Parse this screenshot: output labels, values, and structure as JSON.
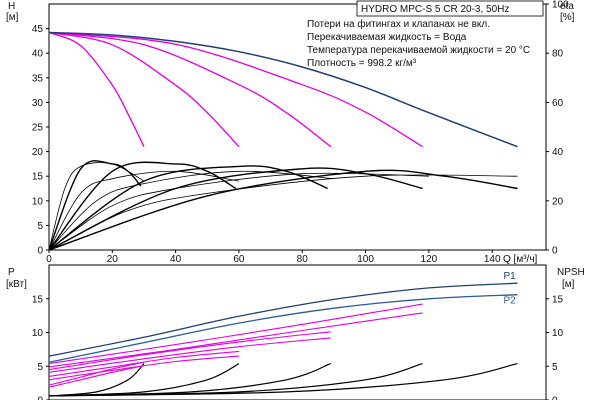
{
  "chart_data": [
    {
      "type": "line",
      "title": "HYDRO MPC-S 5 CR 20-3, 50Hz",
      "xlabel": "Q [м³/ч]",
      "ylabel_left": [
        "H",
        "[м]"
      ],
      "ylabel_right": [
        "eta",
        "[%]"
      ],
      "notes": [
        "Потери на фитингах и клапанах не вкл.",
        "Перекачиваемая жидкость = Вода",
        "Температура перекачиваемой жидкости = 20 °C",
        "Плотность = 998.2 кг/м³"
      ],
      "xlim": [
        0,
        157
      ],
      "ylim_left": [
        0,
        50
      ],
      "ylim_right": [
        0,
        100
      ],
      "x_ticks": [
        0,
        20,
        40,
        60,
        80,
        100,
        120,
        140
      ],
      "y_ticks_left": [
        0,
        5,
        10,
        15,
        20,
        25,
        30,
        35,
        40,
        45
      ],
      "y_ticks_right": [
        0,
        20,
        40,
        60,
        80,
        100
      ],
      "colors": {
        "max": "#1f3f73",
        "reduced": "#e600e6",
        "eta": "#000000"
      },
      "head_max": {
        "x": [
          0,
          20,
          40,
          60,
          80,
          100,
          120,
          148
        ],
        "y": [
          44.2,
          43.7,
          42.4,
          40.3,
          37.2,
          33.0,
          27.9,
          21.0
        ]
      },
      "head_reduced": [
        {
          "x": [
            0,
            10,
            20,
            25,
            30
          ],
          "y": [
            44.2,
            41.5,
            33.5,
            27.6,
            21.0
          ]
        },
        {
          "x": [
            0,
            20,
            40,
            50,
            60
          ],
          "y": [
            44.2,
            41.7,
            33.5,
            27.9,
            21.0
          ]
        },
        {
          "x": [
            0,
            30,
            60,
            75,
            89
          ],
          "y": [
            44.2,
            41.7,
            33.6,
            27.9,
            21.0
          ]
        },
        {
          "x": [
            0,
            40,
            80,
            100,
            118
          ],
          "y": [
            44.2,
            41.8,
            33.6,
            28.0,
            21.0
          ]
        }
      ],
      "efficiency": [
        {
          "x": [
            0,
            10,
            20,
            25,
            29
          ],
          "eta": [
            0,
            33,
            35,
            32,
            26
          ]
        },
        {
          "x": [
            0,
            5,
            10,
            20,
            30
          ],
          "eta": [
            0,
            25,
            34,
            35,
            28
          ]
        },
        {
          "x": [
            0,
            20,
            40,
            50,
            59
          ],
          "eta": [
            0,
            32,
            35,
            32,
            25
          ]
        },
        {
          "x": [
            0,
            10,
            20,
            40,
            60
          ],
          "eta": [
            0,
            23,
            29,
            32,
            28
          ]
        },
        {
          "x": [
            0,
            30,
            60,
            75,
            88
          ],
          "eta": [
            0,
            28,
            34,
            32,
            25
          ]
        },
        {
          "x": [
            0,
            15,
            30,
            60,
            90
          ],
          "eta": [
            0,
            20,
            27,
            32,
            29
          ]
        },
        {
          "x": [
            0,
            40,
            80,
            100,
            118
          ],
          "eta": [
            0,
            25,
            33,
            31,
            25
          ]
        },
        {
          "x": [
            0,
            20,
            40,
            80,
            120
          ],
          "eta": [
            0,
            18,
            25,
            31,
            30
          ]
        },
        {
          "x": [
            0,
            50,
            100,
            125,
            148
          ],
          "eta": [
            0,
            22,
            32,
            30,
            25
          ]
        },
        {
          "x": [
            0,
            25,
            50,
            100,
            148
          ],
          "eta": [
            0,
            16,
            23,
            30,
            30
          ]
        }
      ]
    },
    {
      "type": "line",
      "ylabel_left": [
        "P",
        "[кВт]"
      ],
      "ylabel_right": [
        "NPSH",
        "[м]"
      ],
      "xlim": [
        0,
        157
      ],
      "ylim_left": [
        0,
        20
      ],
      "ylim_right": [
        0,
        20
      ],
      "x_ticks": [
        0,
        20,
        40,
        60,
        80,
        100,
        120,
        140
      ],
      "y_ticks_left": [
        0,
        5,
        10,
        15
      ],
      "y_ticks_right": [
        0,
        5,
        10,
        15
      ],
      "series": [
        {
          "name": "P1",
          "x": [
            0,
            30,
            60,
            90,
            120,
            148
          ],
          "y": [
            6.5,
            9.3,
            12.4,
            14.9,
            16.6,
            17.3
          ]
        },
        {
          "name": "P2",
          "x": [
            0,
            30,
            60,
            90,
            120,
            148
          ],
          "y": [
            5.6,
            8.5,
            11.4,
            13.6,
            15.0,
            15.6
          ]
        }
      ],
      "power_reduced": [
        {
          "x": [
            0,
            10,
            20,
            30
          ],
          "y": [
            2.2,
            3.4,
            4.6,
            5.6
          ]
        },
        {
          "x": [
            0,
            10,
            20,
            30
          ],
          "y": [
            1.9,
            3.0,
            4.1,
            5.1
          ]
        },
        {
          "x": [
            0,
            20,
            40,
            60
          ],
          "y": [
            3.5,
            4.9,
            6.3,
            7.2
          ]
        },
        {
          "x": [
            0,
            20,
            40,
            60
          ],
          "y": [
            3.0,
            4.4,
            5.7,
            6.5
          ]
        },
        {
          "x": [
            0,
            30,
            60,
            89
          ],
          "y": [
            4.5,
            6.7,
            8.6,
            10.1
          ]
        },
        {
          "x": [
            0,
            30,
            60,
            89
          ],
          "y": [
            4.1,
            6.1,
            7.9,
            9.2
          ]
        },
        {
          "x": [
            0,
            40,
            80,
            118
          ],
          "y": [
            5.4,
            8.2,
            11.2,
            14.2
          ]
        },
        {
          "x": [
            0,
            40,
            80,
            118
          ],
          "y": [
            4.9,
            7.5,
            10.3,
            12.9
          ]
        }
      ],
      "npsh": [
        {
          "x": [
            0,
            15,
            25,
            30
          ],
          "y": [
            0.6,
            1.2,
            3.0,
            5.4
          ]
        },
        {
          "x": [
            0,
            30,
            50,
            60
          ],
          "y": [
            0.6,
            1.2,
            3.0,
            5.4
          ]
        },
        {
          "x": [
            0,
            45,
            75,
            89
          ],
          "y": [
            0.6,
            1.2,
            3.0,
            5.4
          ]
        },
        {
          "x": [
            0,
            60,
            100,
            118
          ],
          "y": [
            0.6,
            1.2,
            3.0,
            5.4
          ]
        },
        {
          "x": [
            0,
            75,
            125,
            148
          ],
          "y": [
            0.6,
            1.2,
            3.0,
            5.4
          ]
        }
      ]
    }
  ]
}
